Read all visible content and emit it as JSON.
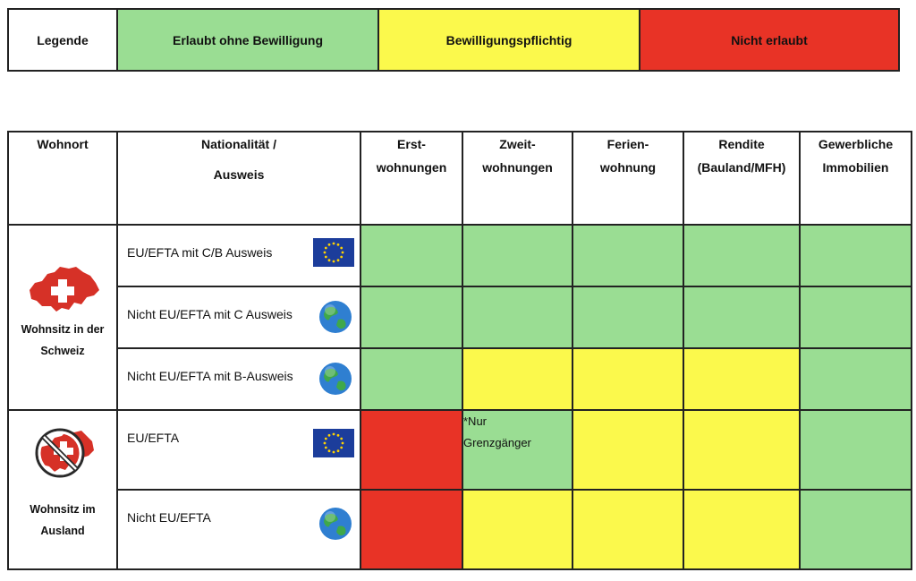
{
  "legend": {
    "title": "Legende",
    "allowed": "Erlaubt ohne Bewilligung",
    "permit": "Bewilligungspflichtig",
    "not_allowed": "Nicht erlaubt",
    "colors": {
      "allowed": "#9add93",
      "permit": "#fbf94c",
      "not_allowed": "#e83326"
    }
  },
  "header": {
    "wohnort": "Wohnort",
    "nationality": [
      "Nationalität /",
      "Ausweis"
    ],
    "erst": [
      "Erst-",
      "wohnungen"
    ],
    "zweit": [
      "Zweit-",
      "wohnungen"
    ],
    "ferien": [
      "Ferien-",
      "wohnung"
    ],
    "rendite": [
      "Rendite",
      "(Bauland/MFH)"
    ],
    "gewerbe": [
      "Gewerbliche",
      "Immobilien"
    ]
  },
  "groups": {
    "swiss": {
      "label": [
        "Wohnsitz in der",
        "Schweiz"
      ],
      "icon": "switzerland-map-icon"
    },
    "abroad": {
      "label": [
        "Wohnsitz im",
        "Ausland"
      ],
      "icon": "no-switzerland-icon"
    }
  },
  "rows": [
    {
      "nationality": "EU/EFTA mit C/B Ausweis",
      "icon": "eu-flag-icon",
      "status": [
        "allowed",
        "allowed",
        "allowed",
        "allowed",
        "allowed"
      ]
    },
    {
      "nationality": "Nicht EU/EFTA mit C Ausweis",
      "icon": "globe-icon",
      "status": [
        "allowed",
        "allowed",
        "allowed",
        "allowed",
        "allowed"
      ]
    },
    {
      "nationality": "Nicht EU/EFTA mit B-Ausweis",
      "icon": "globe-icon",
      "status": [
        "allowed",
        "permit",
        "permit",
        "permit",
        "allowed"
      ]
    },
    {
      "nationality": "EU/EFTA",
      "icon": "eu-flag-icon",
      "status": [
        "not_allowed",
        "allowed",
        "permit",
        "permit",
        "allowed"
      ],
      "note": [
        "*Nur",
        "Grenzgänger"
      ]
    },
    {
      "nationality": "Nicht EU/EFTA",
      "icon": "globe-icon",
      "status": [
        "not_allowed",
        "permit",
        "permit",
        "permit",
        "allowed"
      ]
    }
  ]
}
